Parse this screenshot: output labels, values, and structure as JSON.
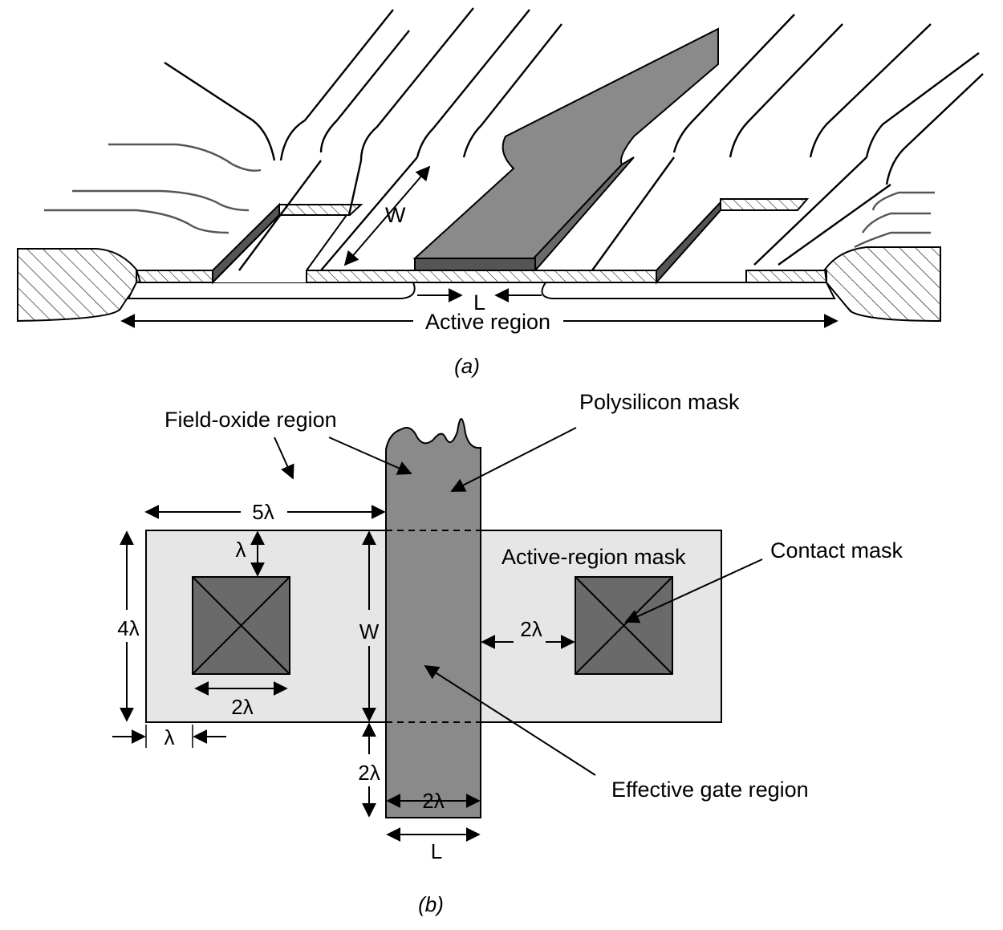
{
  "figure_a": {
    "caption": "(a)",
    "labels": {
      "width": "W",
      "length": "L",
      "active_region": "Active region"
    }
  },
  "figure_b": {
    "caption": "(b)",
    "labels": {
      "field_oxide": "Field-oxide region",
      "polysilicon_mask": "Polysilicon mask",
      "active_region_mask": "Active-region mask",
      "contact_mask": "Contact mask",
      "effective_gate": "Effective gate region"
    },
    "dimensions": {
      "five_lambda": "5λ",
      "lambda_top": "λ",
      "four_lambda": "4λ",
      "width": "W",
      "two_lambda_spacing": "2λ",
      "two_lambda_contact": "2λ",
      "lambda_bottom": "λ",
      "two_lambda_ext": "2λ",
      "two_lambda_poly": "2λ",
      "length": "L"
    }
  },
  "colors": {
    "polysilicon": "#8a8a8a",
    "contact": "#6a6a6a",
    "active_region": "#e6e6e6",
    "outline": "#000000"
  }
}
